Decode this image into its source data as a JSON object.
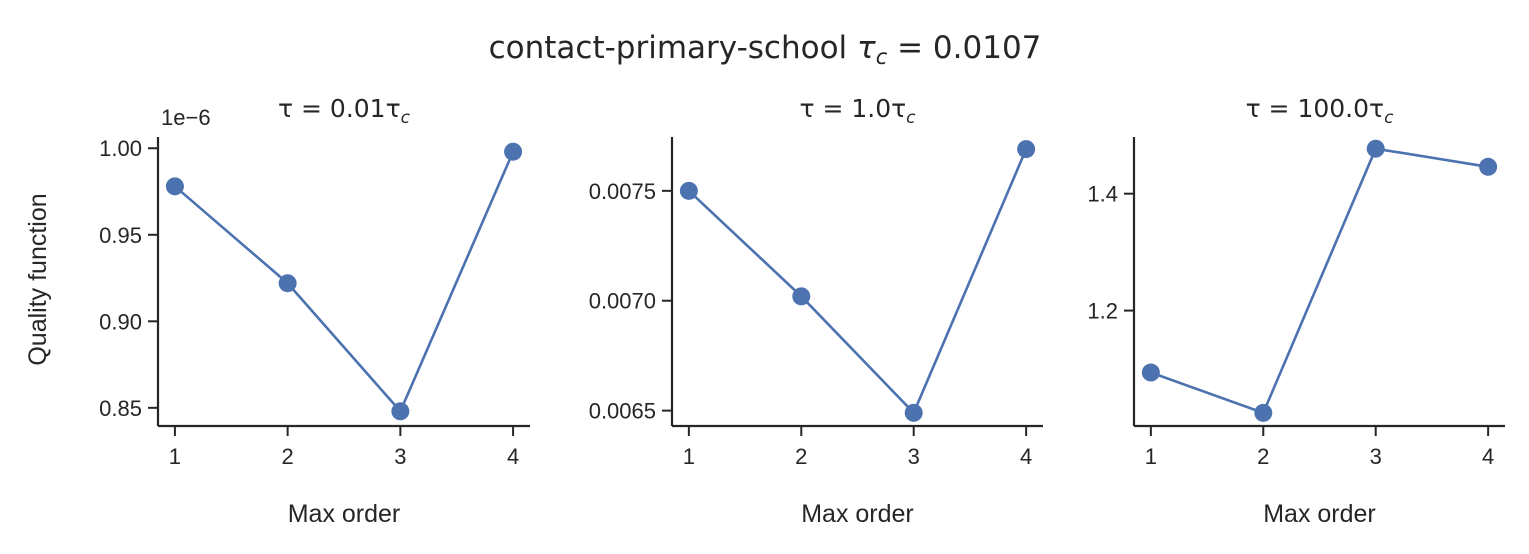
{
  "figure": {
    "title_prefix": "contact-primary-school",
    "title_tau": "τ",
    "title_sub": "c",
    "title_eq": " = 0.0107"
  },
  "colors": {
    "series": "#4c72b0",
    "axis": "#262626"
  },
  "chart_data": [
    {
      "type": "line",
      "title_prefix": "τ = 0.01τ",
      "title_sub": "c",
      "xlabel": "Max order",
      "ylabel": "Quality function",
      "offset_text": "1e−6",
      "x": [
        1,
        2,
        3,
        4
      ],
      "x_tick_labels": [
        "1",
        "2",
        "3",
        "4"
      ],
      "values": [
        0.978,
        0.922,
        0.848,
        0.998
      ],
      "y_ticks": [
        0.85,
        0.9,
        0.95,
        1.0
      ],
      "y_tick_labels": [
        "0.85",
        "0.90",
        "0.95",
        "1.00"
      ],
      "xlim": [
        0.85,
        4.15
      ],
      "ylim": [
        0.8395,
        1.0065
      ],
      "grid": false,
      "marker": "circle"
    },
    {
      "type": "line",
      "title_prefix": "τ = 1.0τ",
      "title_sub": "c",
      "xlabel": "Max order",
      "ylabel": "",
      "offset_text": "",
      "x": [
        1,
        2,
        3,
        4
      ],
      "x_tick_labels": [
        "1",
        "2",
        "3",
        "4"
      ],
      "values": [
        0.0075,
        0.00702,
        0.00649,
        0.00769
      ],
      "y_ticks": [
        0.0065,
        0.007,
        0.0075
      ],
      "y_tick_labels": [
        "0.0065",
        "0.0070",
        "0.0075"
      ],
      "xlim": [
        0.85,
        4.15
      ],
      "ylim": [
        0.00643,
        0.007745
      ],
      "grid": false,
      "marker": "circle"
    },
    {
      "type": "line",
      "title_prefix": "τ = 100.0τ",
      "title_sub": "c",
      "xlabel": "Max order",
      "ylabel": "",
      "offset_text": "",
      "x": [
        1,
        2,
        3,
        4
      ],
      "x_tick_labels": [
        "1",
        "2",
        "3",
        "4"
      ],
      "values": [
        1.094,
        1.025,
        1.477,
        1.446
      ],
      "y_ticks": [
        1.2,
        1.4
      ],
      "y_tick_labels": [
        "1.2",
        "1.4"
      ],
      "xlim": [
        0.85,
        4.15
      ],
      "ylim": [
        1.0025,
        1.497
      ],
      "grid": false,
      "marker": "circle"
    }
  ]
}
